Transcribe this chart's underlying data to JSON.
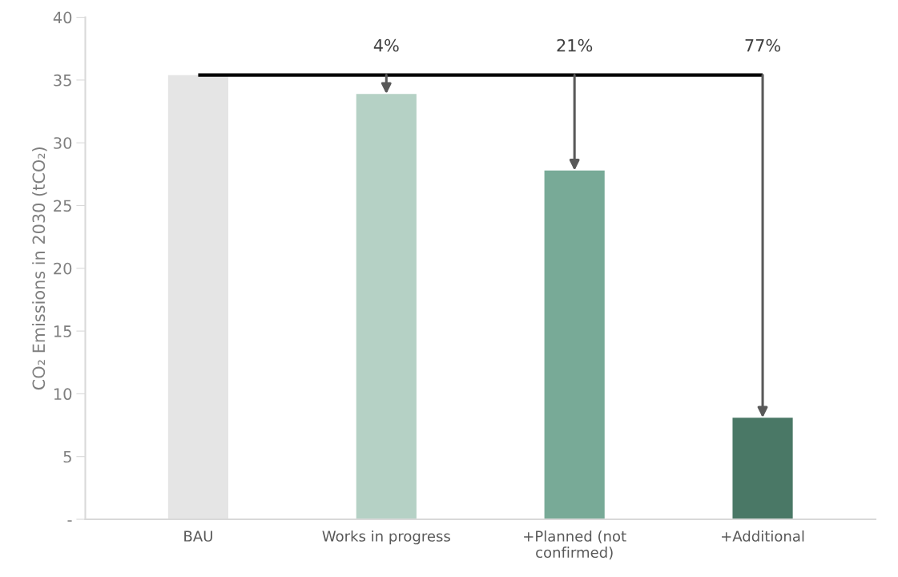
{
  "chart_data": {
    "type": "bar",
    "ylabel": "CO₂ Emissions in 2030 (tCO₂)",
    "categories": [
      "BAU",
      "Works in progress",
      "+Planned (not confirmed)",
      "+Additional"
    ],
    "series": [
      {
        "colors": [
          "#e5e5e5",
          "#b5d1c5",
          "#78aa97",
          "#4a7866"
        ],
        "values": [
          35.4,
          33.9,
          27.8,
          8.1
        ]
      },
      {
        "type": "line",
        "color": "#000000",
        "values": [
          35.4,
          35.4,
          35.4,
          35.4
        ]
      }
    ],
    "ylim": [
      0,
      40
    ],
    "yticks": [
      {
        "value": 0,
        "label": "-"
      },
      5,
      10,
      15,
      20,
      25,
      30,
      35,
      40
    ],
    "grid": false,
    "annotations": [
      "4%",
      "21%",
      "77%"
    ]
  }
}
